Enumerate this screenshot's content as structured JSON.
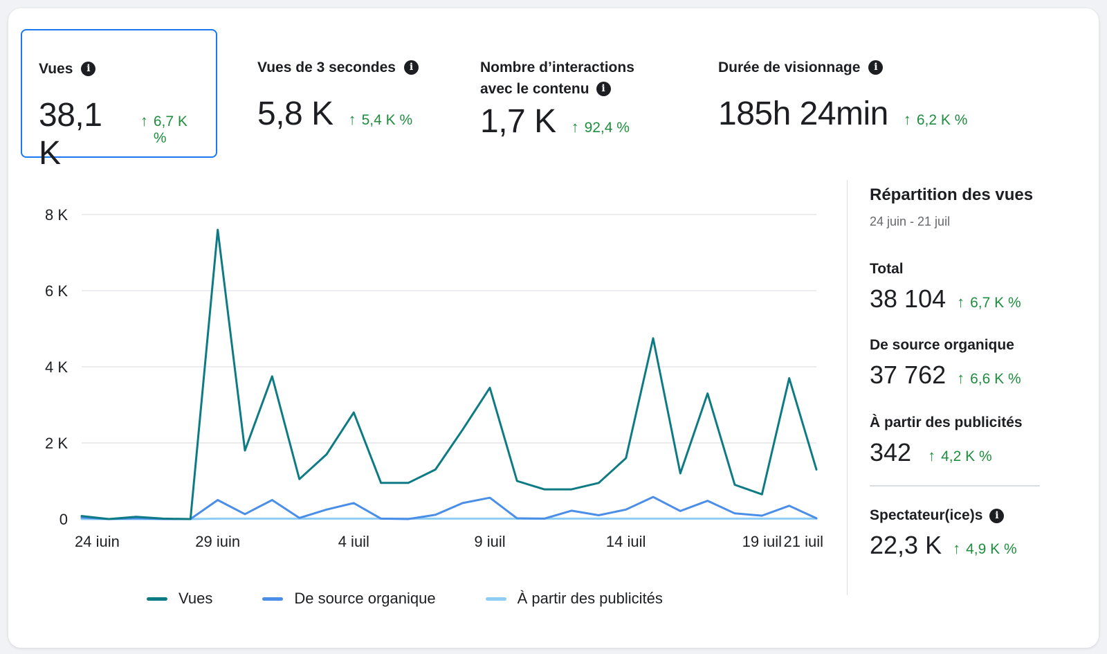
{
  "metrics": [
    {
      "label": "Vues",
      "value": "38,1 K",
      "delta": "6,7 K %"
    },
    {
      "label": "Vues de 3 secondes",
      "value": "5,8 K",
      "delta": "5,4 K %"
    },
    {
      "label_line1": "Nombre d’interactions",
      "label_line2": "avec le contenu",
      "value": "1,7 K",
      "delta": "92,4 %"
    },
    {
      "label": "Durée de visionnage",
      "value": "185h 24min",
      "delta": "6,2 K %"
    }
  ],
  "icons": {
    "info": "info-icon",
    "up_arrow": "arrow-up-icon",
    "arrow_glyph": "↑",
    "info_glyph": "i"
  },
  "colors": {
    "vues": "#0e7a83",
    "organique": "#4a8ee8",
    "publicites": "#8fcdf5",
    "positive": "#1e8e3e",
    "selected_border": "#1877f2"
  },
  "chart_data": {
    "type": "line",
    "x": [
      "24 juin",
      "25 juin",
      "26 juin",
      "27 juin",
      "28 juin",
      "29 juin",
      "30 juin",
      "1 juil",
      "2 juil",
      "3 juil",
      "4 juil",
      "5 juil",
      "6 juil",
      "7 juil",
      "8 juil",
      "9 juil",
      "10 juil",
      "11 juil",
      "12 juil",
      "13 juil",
      "14 juil",
      "15 juil",
      "16 juil",
      "17 juil",
      "18 juil",
      "19 juil",
      "20 juil",
      "21 juil"
    ],
    "x_tick_labels": [
      "24 juin",
      "29 juin",
      "4 juil",
      "9 juil",
      "14 juil",
      "19 juil",
      "21 juil"
    ],
    "y_ticks": [
      "0",
      "2 K",
      "4 K",
      "6 K",
      "8 K"
    ],
    "ylim": [
      0,
      8000
    ],
    "grid": true,
    "legend_position": "bottom",
    "series": [
      {
        "name": "Vues",
        "values": [
          80,
          0,
          60,
          10,
          0,
          7600,
          1800,
          3750,
          1050,
          1700,
          2800,
          950,
          950,
          1300,
          2350,
          3450,
          1000,
          780,
          780,
          950,
          1600,
          4750,
          1200,
          3300,
          900,
          650,
          3700,
          1300
        ]
      },
      {
        "name": "De source organique",
        "values": [
          40,
          0,
          20,
          0,
          0,
          500,
          130,
          500,
          30,
          250,
          420,
          10,
          0,
          110,
          420,
          560,
          20,
          10,
          220,
          100,
          250,
          580,
          210,
          480,
          150,
          90,
          350,
          20
        ]
      },
      {
        "name": "À partir des publicités",
        "values": [
          0,
          0,
          0,
          0,
          0,
          10,
          10,
          10,
          10,
          10,
          10,
          10,
          10,
          10,
          10,
          10,
          10,
          10,
          10,
          10,
          10,
          10,
          10,
          10,
          10,
          10,
          10,
          10
        ]
      }
    ]
  },
  "side": {
    "title": "Répartition des vues",
    "date_range": "24 juin - 21 juil",
    "items": [
      {
        "label": "Total",
        "value": "38 104",
        "delta": "6,7 K %"
      },
      {
        "label": "De source organique",
        "value": "37 762",
        "delta": "6,6 K %"
      },
      {
        "label": "À partir des publicités",
        "value": "342",
        "delta": "4,2 K %"
      }
    ],
    "viewers": {
      "label": "Spectateur(ice)s",
      "value": "22,3 K",
      "delta": "4,9 K %"
    }
  }
}
